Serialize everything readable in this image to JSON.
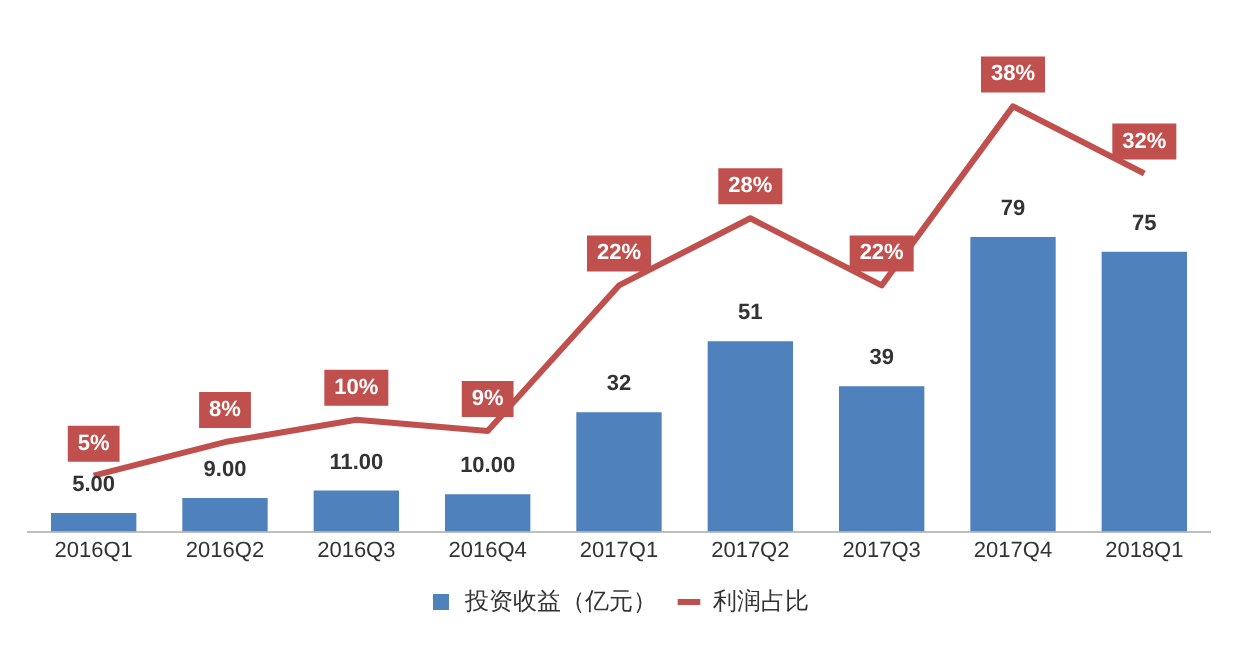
{
  "chart_data": {
    "type": "bar",
    "categories": [
      "2016Q1",
      "2016Q2",
      "2016Q3",
      "2016Q4",
      "2017Q1",
      "2017Q2",
      "2017Q3",
      "2017Q4",
      "2018Q1"
    ],
    "series": [
      {
        "name": "投资收益（亿元）",
        "color": "#4f81bd",
        "values": [
          5,
          9,
          11,
          10,
          32,
          51,
          39,
          79,
          75
        ],
        "value_labels": [
          "5.00",
          "9.00",
          "11.00",
          "10.00",
          "32",
          "51",
          "39",
          "79",
          "75"
        ]
      },
      {
        "name": "利润占比",
        "type": "line",
        "axis": "y2",
        "color": "#c0504d",
        "values": [
          5,
          8,
          10,
          9,
          22,
          28,
          22,
          38,
          32
        ],
        "value_labels": [
          "5%",
          "8%",
          "10%",
          "9%",
          "22%",
          "28%",
          "22%",
          "38%",
          "32%"
        ]
      }
    ],
    "tick_labels": "x",
    "grid": false,
    "legend": "bottom",
    "marker": "none",
    "line_style": "solid"
  }
}
